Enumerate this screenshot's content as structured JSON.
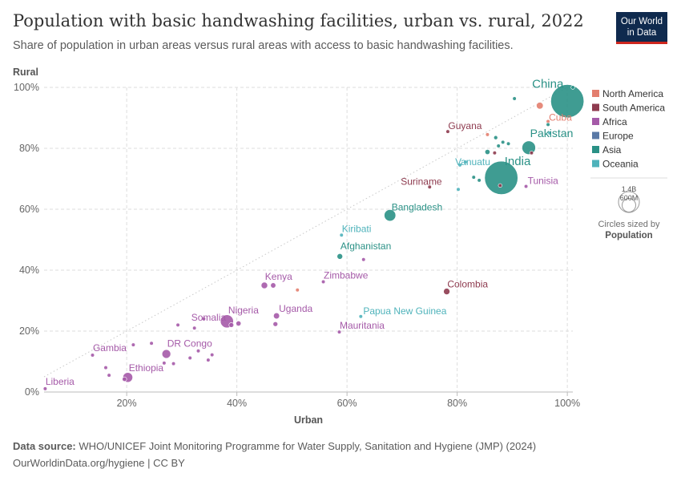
{
  "header": {
    "title": "Population with basic handwashing facilities, urban vs. rural, 2022",
    "subtitle": "Share of population in urban areas versus rural areas with access to basic handwashing facilities."
  },
  "logo": {
    "line1": "Our World",
    "line2": "in Data"
  },
  "footer": {
    "source_label": "Data source:",
    "source_text": "WHO/UNICEF Joint Monitoring Programme for Water Supply, Sanitation and Hygiene (JMP) (2024)",
    "url_line": "OurWorldinData.org/hygiene | CC BY"
  },
  "colors": {
    "North America": "#e37e6e",
    "South America": "#8e3b4f",
    "Africa": "#a55aa8",
    "Europe": "#5a79a6",
    "Asia": "#2a9186",
    "Oceania": "#4fb3bb"
  },
  "chart_data": {
    "type": "scatter",
    "xlabel": "Urban",
    "ylabel": "Rural",
    "xlim": [
      5,
      101
    ],
    "ylim": [
      0,
      100
    ],
    "x_ticks": [
      "20%",
      "40%",
      "60%",
      "80%",
      "100%"
    ],
    "y_ticks": [
      "0%",
      "20%",
      "40%",
      "60%",
      "80%",
      "100%"
    ],
    "grid": true,
    "diagonal_reference": true,
    "legend": [
      "North America",
      "South America",
      "Africa",
      "Europe",
      "Asia",
      "Oceania"
    ],
    "legend_position": "right",
    "size_legend": {
      "large": "1.4B",
      "small": "600M",
      "caption": "Circles sized by",
      "caption_bold": "Population"
    },
    "points": [
      {
        "label": "China",
        "x": 100,
        "y": 95.5,
        "pop": 1410,
        "region": "Asia"
      },
      {
        "label": "India",
        "x": 88,
        "y": 70.3,
        "pop": 1420,
        "region": "Asia"
      },
      {
        "label": "Pakistan",
        "x": 93,
        "y": 80.2,
        "pop": 235,
        "region": "Asia"
      },
      {
        "label": "Bangladesh",
        "x": 67.8,
        "y": 58,
        "pop": 171,
        "region": "Asia"
      },
      {
        "label": "Afghanistan",
        "x": 58.7,
        "y": 44.5,
        "pop": 41,
        "region": "Asia"
      },
      {
        "label": "Vanuatu",
        "x": 80.5,
        "y": 74.5,
        "pop": 0.3,
        "region": "Oceania"
      },
      {
        "label": "Kiribati",
        "x": 59,
        "y": 51.5,
        "pop": 0.13,
        "region": "Oceania"
      },
      {
        "label": "Papua New Guinea",
        "x": 62.5,
        "y": 24.8,
        "pop": 10,
        "region": "Oceania"
      },
      {
        "label": "Cuba",
        "x": 96.5,
        "y": 88.8,
        "pop": 11,
        "region": "North America"
      },
      {
        "label": "",
        "x": 95,
        "y": 94,
        "pop": 60,
        "region": "North America"
      },
      {
        "label": "Guyana",
        "x": 78.3,
        "y": 85.5,
        "pop": 0.8,
        "region": "South America"
      },
      {
        "label": "Suriname",
        "x": 75,
        "y": 67.3,
        "pop": 0.6,
        "region": "South America"
      },
      {
        "label": "Colombia",
        "x": 78.1,
        "y": 33,
        "pop": 52,
        "region": "South America"
      },
      {
        "label": "Tunisia",
        "x": 92.5,
        "y": 67.5,
        "pop": 12,
        "region": "Africa"
      },
      {
        "label": "Zimbabwe",
        "x": 55.7,
        "y": 36.2,
        "pop": 16,
        "region": "Africa"
      },
      {
        "label": "Kenya",
        "x": 45,
        "y": 35,
        "pop": 54,
        "region": "Africa"
      },
      {
        "label": "Uganda",
        "x": 47.2,
        "y": 25,
        "pop": 47,
        "region": "Africa"
      },
      {
        "label": "Nigeria",
        "x": 38.2,
        "y": 23.2,
        "pop": 218,
        "region": "Africa"
      },
      {
        "label": "Somalia",
        "x": 32.3,
        "y": 21,
        "pop": 17,
        "region": "Africa"
      },
      {
        "label": "Mauritania",
        "x": 58.6,
        "y": 19.7,
        "pop": 4.7,
        "region": "Africa"
      },
      {
        "label": "DR Congo",
        "x": 27.2,
        "y": 12.5,
        "pop": 99,
        "region": "Africa"
      },
      {
        "label": "Ethiopia",
        "x": 20.2,
        "y": 4.8,
        "pop": 123,
        "region": "Africa"
      },
      {
        "label": "Gambia",
        "x": 13.8,
        "y": 12.1,
        "pop": 2.7,
        "region": "Africa"
      },
      {
        "label": "Liberia",
        "x": 5.2,
        "y": 1.1,
        "pop": 5.3,
        "region": "Africa"
      },
      {
        "label": "",
        "x": 40.3,
        "y": 22.5,
        "pop": 33,
        "region": "Africa"
      },
      {
        "label": "",
        "x": 39,
        "y": 22,
        "pop": 30,
        "region": "Africa"
      },
      {
        "label": "",
        "x": 46.6,
        "y": 35,
        "pop": 35,
        "region": "Africa"
      },
      {
        "label": "",
        "x": 47,
        "y": 22.3,
        "pop": 29,
        "region": "Africa"
      },
      {
        "label": "",
        "x": 63,
        "y": 43.5,
        "pop": 5,
        "region": "Africa"
      },
      {
        "label": "",
        "x": 51,
        "y": 33.5,
        "pop": 1,
        "region": "North America"
      },
      {
        "label": "",
        "x": 29.3,
        "y": 22,
        "pop": 6,
        "region": "Africa"
      },
      {
        "label": "",
        "x": 34,
        "y": 24,
        "pop": 6,
        "region": "Africa"
      },
      {
        "label": "",
        "x": 21.2,
        "y": 15.5,
        "pop": 3,
        "region": "Africa"
      },
      {
        "label": "",
        "x": 24.5,
        "y": 16,
        "pop": 8,
        "region": "Africa"
      },
      {
        "label": "",
        "x": 26.8,
        "y": 9.5,
        "pop": 12,
        "region": "Africa"
      },
      {
        "label": "",
        "x": 28.5,
        "y": 9.3,
        "pop": 8,
        "region": "Africa"
      },
      {
        "label": "",
        "x": 31.5,
        "y": 11.2,
        "pop": 10,
        "region": "Africa"
      },
      {
        "label": "",
        "x": 33,
        "y": 13.5,
        "pop": 4,
        "region": "Africa"
      },
      {
        "label": "",
        "x": 34.8,
        "y": 10.5,
        "pop": 6,
        "region": "Africa"
      },
      {
        "label": "",
        "x": 35.5,
        "y": 12.2,
        "pop": 5,
        "region": "Africa"
      },
      {
        "label": "",
        "x": 16.2,
        "y": 8,
        "pop": 2,
        "region": "Africa"
      },
      {
        "label": "",
        "x": 16.8,
        "y": 5.5,
        "pop": 9,
        "region": "Africa"
      },
      {
        "label": "",
        "x": 19.6,
        "y": 4.2,
        "pop": 26,
        "region": "Africa"
      },
      {
        "label": "",
        "x": 85.5,
        "y": 78.8,
        "pop": 33,
        "region": "Asia"
      },
      {
        "label": "",
        "x": 87,
        "y": 83.5,
        "pop": 20,
        "region": "Asia"
      },
      {
        "label": "",
        "x": 83,
        "y": 70.5,
        "pop": 12,
        "region": "Asia"
      },
      {
        "label": "",
        "x": 84,
        "y": 69.5,
        "pop": 3,
        "region": "Asia"
      },
      {
        "label": "",
        "x": 87.5,
        "y": 80.8,
        "pop": 4,
        "region": "Asia"
      },
      {
        "label": "",
        "x": 88.3,
        "y": 82,
        "pop": 4,
        "region": "Asia"
      },
      {
        "label": "",
        "x": 89.3,
        "y": 81.5,
        "pop": 3,
        "region": "Asia"
      },
      {
        "label": "",
        "x": 90.4,
        "y": 96.3,
        "pop": 3,
        "region": "Asia"
      },
      {
        "label": "",
        "x": 96.5,
        "y": 87.8,
        "pop": 5,
        "region": "Asia"
      },
      {
        "label": "",
        "x": 101,
        "y": 100,
        "pop": 4,
        "region": "Asia"
      },
      {
        "label": "",
        "x": 85.5,
        "y": 84.5,
        "pop": 2,
        "region": "North America"
      },
      {
        "label": "",
        "x": 93.5,
        "y": 78.5,
        "pop": 6,
        "region": "South America"
      },
      {
        "label": "",
        "x": 86.8,
        "y": 78.5,
        "pop": 3,
        "region": "South America"
      },
      {
        "label": "",
        "x": 87.8,
        "y": 67.8,
        "pop": 3,
        "region": "South America"
      },
      {
        "label": "",
        "x": 80.2,
        "y": 66.5,
        "pop": 1,
        "region": "Oceania"
      },
      {
        "label": "",
        "x": 81.5,
        "y": 75.5,
        "pop": 1,
        "region": "Oceania"
      },
      {
        "label": "",
        "x": 96.8,
        "y": 85,
        "pop": 2,
        "region": "Oceania"
      }
    ]
  }
}
